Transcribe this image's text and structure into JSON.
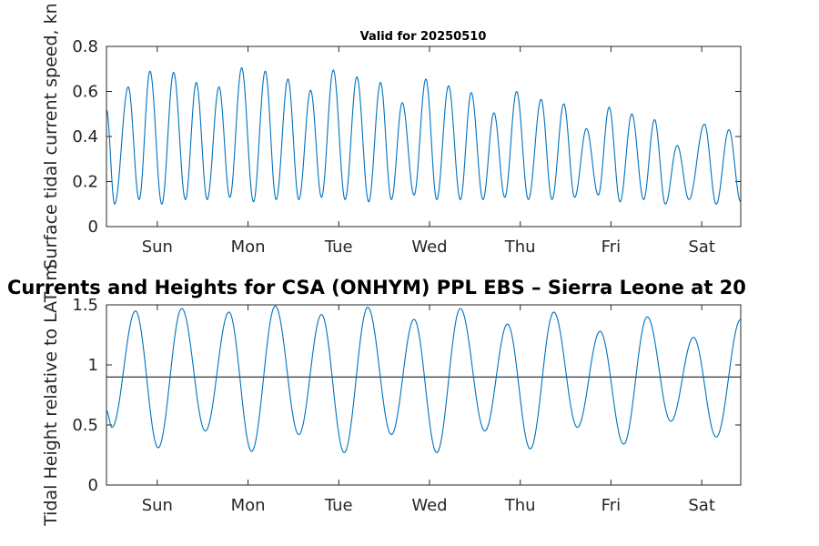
{
  "chart_data": [
    {
      "type": "line",
      "title": "Valid for 20250510",
      "xlabel": "",
      "ylabel": "Surface tidal current speed, kn",
      "ylim": [
        0,
        0.8
      ],
      "yticks": [
        "0",
        "0.2",
        "0.4",
        "0.6",
        "0.8"
      ],
      "yticks_values": [
        0,
        0.2,
        0.4,
        0.6,
        0.8
      ],
      "xlim": [
        0,
        6.99
      ],
      "xticks": [
        "Sun",
        "Mon",
        "Tue",
        "Wed",
        "Thu",
        "Fri",
        "Sat"
      ],
      "xticks_values": [
        0.56,
        1.56,
        2.56,
        3.56,
        4.56,
        5.56,
        6.56
      ],
      "line_color": "#0072BD",
      "series": [
        {
          "extrema": [
            [
              0.0,
              0.52
            ],
            [
              0.09,
              0.1
            ],
            [
              0.24,
              0.62
            ],
            [
              0.36,
              0.12
            ],
            [
              0.48,
              0.69
            ],
            [
              0.61,
              0.1
            ],
            [
              0.74,
              0.685
            ],
            [
              0.87,
              0.12
            ],
            [
              0.99,
              0.64
            ],
            [
              1.11,
              0.12
            ],
            [
              1.24,
              0.62
            ],
            [
              1.36,
              0.13
            ],
            [
              1.49,
              0.705
            ],
            [
              1.62,
              0.11
            ],
            [
              1.75,
              0.69
            ],
            [
              1.87,
              0.12
            ],
            [
              2.0,
              0.655
            ],
            [
              2.12,
              0.12
            ],
            [
              2.25,
              0.605
            ],
            [
              2.37,
              0.13
            ],
            [
              2.5,
              0.695
            ],
            [
              2.63,
              0.12
            ],
            [
              2.76,
              0.665
            ],
            [
              2.89,
              0.11
            ],
            [
              3.02,
              0.64
            ],
            [
              3.14,
              0.12
            ],
            [
              3.26,
              0.55
            ],
            [
              3.39,
              0.14
            ],
            [
              3.52,
              0.655
            ],
            [
              3.64,
              0.12
            ],
            [
              3.77,
              0.625
            ],
            [
              3.9,
              0.12
            ],
            [
              4.02,
              0.595
            ],
            [
              4.15,
              0.12
            ],
            [
              4.27,
              0.505
            ],
            [
              4.39,
              0.13
            ],
            [
              4.52,
              0.6
            ],
            [
              4.65,
              0.12
            ],
            [
              4.79,
              0.565
            ],
            [
              4.91,
              0.12
            ],
            [
              5.04,
              0.545
            ],
            [
              5.16,
              0.13
            ],
            [
              5.29,
              0.435
            ],
            [
              5.42,
              0.14
            ],
            [
              5.54,
              0.53
            ],
            [
              5.66,
              0.11
            ],
            [
              5.79,
              0.5
            ],
            [
              5.92,
              0.12
            ],
            [
              6.04,
              0.475
            ],
            [
              6.16,
              0.1
            ],
            [
              6.29,
              0.36
            ],
            [
              6.42,
              0.12
            ],
            [
              6.59,
              0.455
            ],
            [
              6.72,
              0.1
            ],
            [
              6.86,
              0.43
            ],
            [
              6.99,
              0.11
            ]
          ]
        }
      ]
    },
    {
      "type": "line",
      "title": "Currents and Heights for CSA (ONHYM) PPL EBS  – Sierra Leone at 20",
      "xlabel": "",
      "ylabel": "Tidal Height relative to LAT, m",
      "ylim": [
        0,
        1.5
      ],
      "yticks": [
        "0",
        "0.5",
        "1",
        "1.5"
      ],
      "yticks_values": [
        0,
        0.5,
        1,
        1.5
      ],
      "xlim": [
        0,
        6.99
      ],
      "xticks": [
        "Sun",
        "Mon",
        "Tue",
        "Wed",
        "Thu",
        "Fri",
        "Sat"
      ],
      "xticks_values": [
        0.56,
        1.56,
        2.56,
        3.56,
        4.56,
        5.56,
        6.56
      ],
      "line_color": "#0072BD",
      "reference_line": 0.9,
      "reference_line_color": "#000000",
      "series": [
        {
          "extrema": [
            [
              0.0,
              0.62
            ],
            [
              0.06,
              0.48
            ],
            [
              0.32,
              1.45
            ],
            [
              0.57,
              0.31
            ],
            [
              0.83,
              1.47
            ],
            [
              1.09,
              0.45
            ],
            [
              1.35,
              1.44
            ],
            [
              1.6,
              0.28
            ],
            [
              1.86,
              1.49
            ],
            [
              2.12,
              0.42
            ],
            [
              2.37,
              1.42
            ],
            [
              2.62,
              0.27
            ],
            [
              2.88,
              1.48
            ],
            [
              3.14,
              0.42
            ],
            [
              3.39,
              1.38
            ],
            [
              3.64,
              0.27
            ],
            [
              3.9,
              1.47
            ],
            [
              4.17,
              0.45
            ],
            [
              4.42,
              1.34
            ],
            [
              4.67,
              0.3
            ],
            [
              4.93,
              1.44
            ],
            [
              5.19,
              0.48
            ],
            [
              5.44,
              1.28
            ],
            [
              5.7,
              0.34
            ],
            [
              5.96,
              1.4
            ],
            [
              6.22,
              0.53
            ],
            [
              6.47,
              1.23
            ],
            [
              6.72,
              0.4
            ],
            [
              6.99,
              1.38
            ]
          ]
        }
      ]
    }
  ]
}
